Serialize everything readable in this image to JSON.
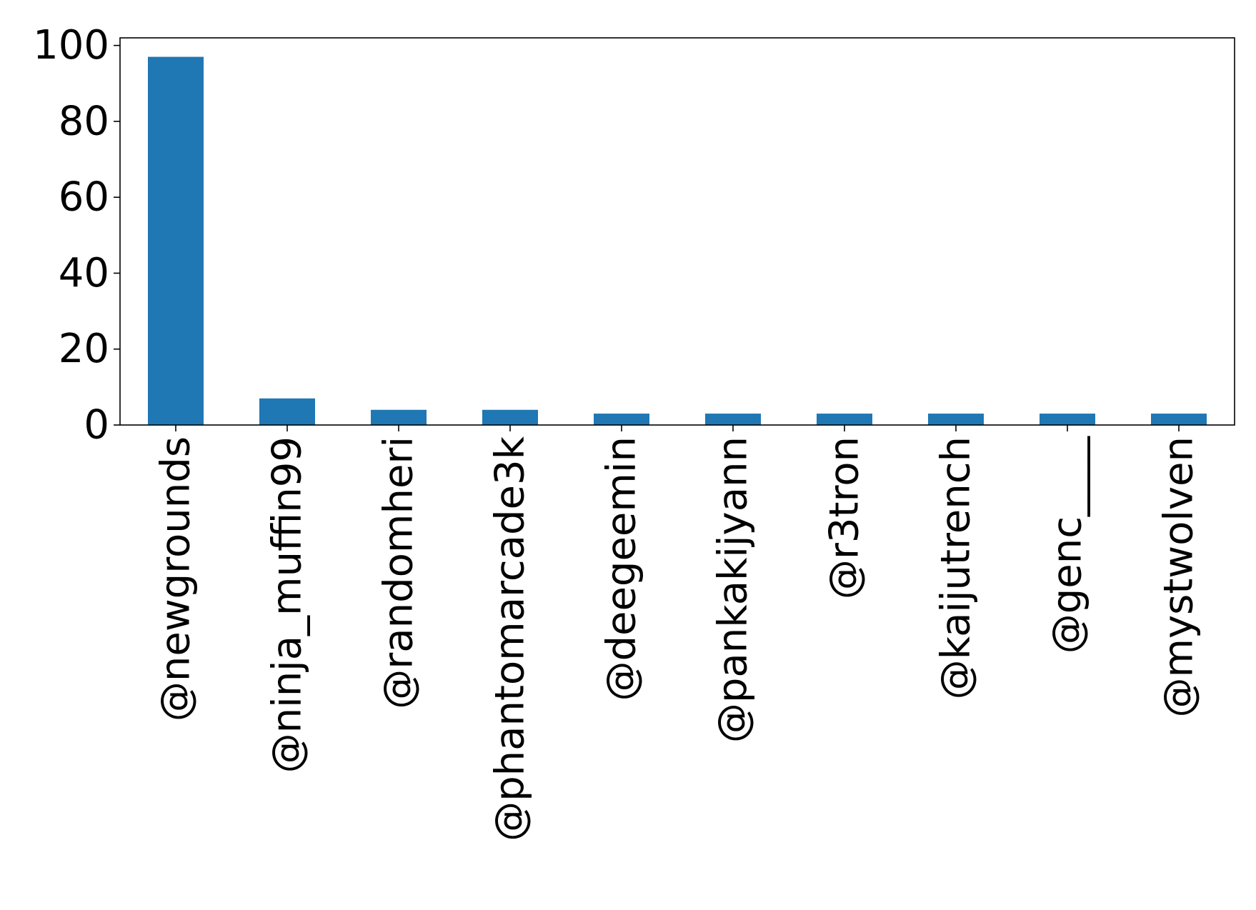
{
  "chart_data": {
    "type": "bar",
    "categories": [
      "@newgrounds",
      "@ninja_muffin99",
      "@randomheri",
      "@phantomarcade3k",
      "@deegeemin",
      "@pankakijyann",
      "@r3tron",
      "@kaijutrench",
      "@genc____",
      "@mystwolven"
    ],
    "values": [
      97,
      7,
      4,
      4,
      3,
      3,
      3,
      3,
      3,
      3
    ],
    "title": "",
    "xlabel": "",
    "ylabel": "",
    "ylim": [
      0,
      102
    ],
    "yticks": [
      0,
      20,
      40,
      60,
      80,
      100
    ],
    "grid": false,
    "legend": "none",
    "bar_color": "#1f77b4"
  }
}
